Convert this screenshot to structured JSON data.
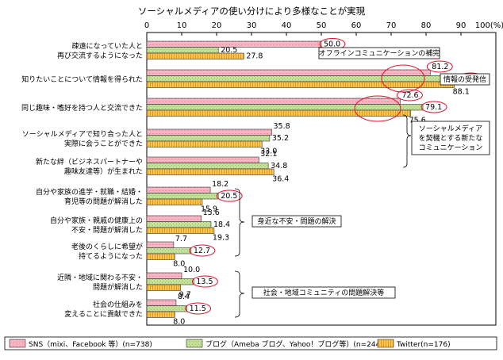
{
  "chart_data": {
    "type": "bar",
    "orientation": "horizontal",
    "title": "ソーシャルメディアの使い分けにより多様なことが実現",
    "x_ticks": [
      "0",
      "10",
      "20",
      "30",
      "40",
      "50",
      "60",
      "70",
      "80",
      "90",
      "100(%)"
    ],
    "xlim": [
      0,
      100
    ],
    "grid": false,
    "legend_position": "bottom",
    "categories": [
      [
        "疎遠になっていた人と",
        "再び交流するようになった"
      ],
      [
        "知りたいことについて情報を得られた"
      ],
      [
        "同じ趣味・嗜好を持つ人と交流できた"
      ],
      [
        "ソーシャルメディアで知り合った人と",
        "実際に会うことができた"
      ],
      [
        "新たな絆（ビジネスパートナーや",
        "趣味友達等）が生まれた"
      ],
      [
        "自分や家族の進学・就職・結婚・",
        "育児等の問題が解消した"
      ],
      [
        "自分や家族・親戚の健康上の",
        "不安・問題が解消した"
      ],
      [
        "老後のくらしに希望が",
        "持てるようになった"
      ],
      [
        "近隣・地域に関わる不安・",
        "問題が解消した"
      ],
      [
        "社会の仕組みを",
        "変えることに貢献できた"
      ]
    ],
    "series": [
      {
        "name": "SNS（mixi、Facebook 等）(n=738)",
        "color": "#f4b6c2",
        "values": [
          50.0,
          81.2,
          72.6,
          35.8,
          32.1,
          18.2,
          15.6,
          7.7,
          10.0,
          8.4
        ]
      },
      {
        "name": "ブログ（Ameba ブログ、Yahoo！ブログ等）(n=244)",
        "color": "#c4e09a",
        "values": [
          20.5,
          89.6,
          79.1,
          35.2,
          34.8,
          20.5,
          18.4,
          12.7,
          13.5,
          11.5
        ]
      },
      {
        "name": "Twitter(n=176)",
        "color": "#f5b830",
        "values": [
          27.8,
          88.1,
          75.6,
          33.0,
          36.4,
          15.9,
          19.3,
          8.0,
          9.7,
          8.0
        ]
      }
    ],
    "value_labels": [
      [
        "50.0",
        "20.5",
        "27.8"
      ],
      [
        "81.2",
        "89.6",
        "88.1"
      ],
      [
        "72.6",
        "79.1",
        "75.6"
      ],
      [
        "35.8",
        "35.2",
        "33.0"
      ],
      [
        "32.1",
        "34.8",
        "36.4"
      ],
      [
        "18.2",
        "20.5",
        "15.9"
      ],
      [
        "15.6",
        "18.4",
        "19.3"
      ],
      [
        "7.7",
        "12.7",
        "8.0"
      ],
      [
        "10.0",
        "13.5",
        "9.7"
      ],
      [
        "8.4",
        "11.5",
        "8.0"
      ]
    ],
    "circled_values": [
      [
        0,
        0
      ],
      [
        1,
        0
      ],
      [
        1,
        1
      ],
      [
        2,
        0
      ],
      [
        2,
        1
      ],
      [
        5,
        1
      ],
      [
        7,
        1
      ],
      [
        8,
        1
      ],
      [
        9,
        1
      ]
    ],
    "annotations": [
      "オフラインコミュニケーションの補完",
      "情報の受発信",
      [
        "ソーシャルメディア",
        "を契機とする新たな",
        "コミュニケーション"
      ],
      "身近な不安・問題の解決",
      "社会・地域コミュニティの問題解決等"
    ]
  }
}
